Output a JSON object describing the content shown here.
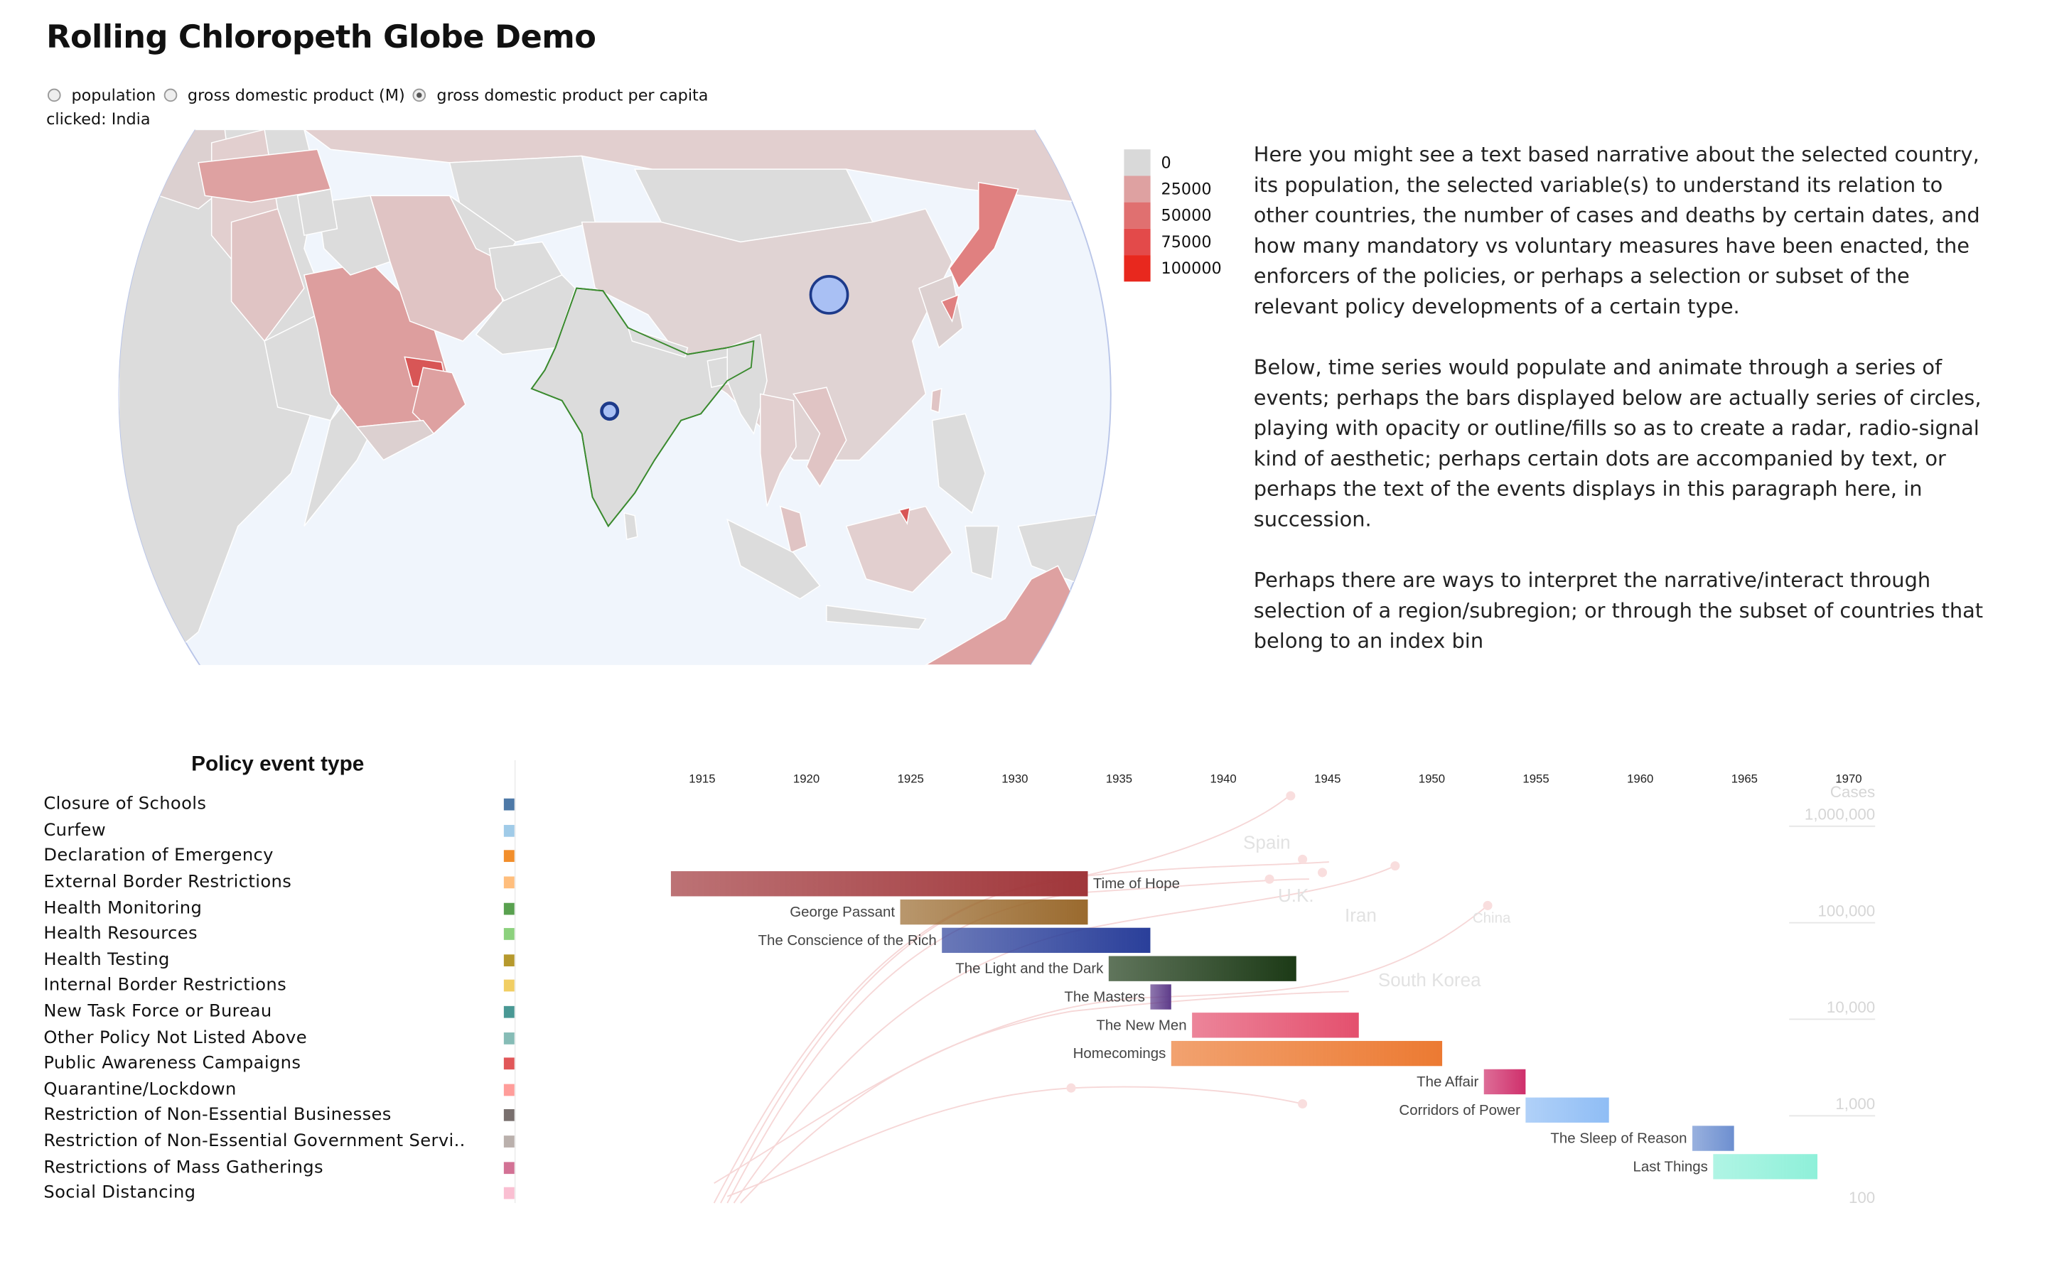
{
  "title": "Rolling Chloropeth Globe Demo",
  "radio_options": [
    {
      "label": "population",
      "selected": false
    },
    {
      "label": "gross domestic product (M)",
      "selected": false
    },
    {
      "label": "gross domestic product per capita",
      "selected": true
    }
  ],
  "clicked_label": "clicked: India",
  "map_legend": [
    {
      "label": "0",
      "color": "#d9d9d9"
    },
    {
      "label": "25000",
      "color": "#dea1a1"
    },
    {
      "label": "50000",
      "color": "#e07070"
    },
    {
      "label": "75000",
      "color": "#e34a4a"
    },
    {
      "label": "100000",
      "color": "#e8281e"
    }
  ],
  "narrative": [
    "Here you might see a text based narrative about the selected country, its population, the selected variable(s) to understand its relation to other countries, the number of cases and deaths by certain dates, and how many mandatory vs voluntary measures have been enacted, the enforcers of the policies, or perhaps a selection or subset of the relevant policy developments of a certain type.",
    "Below, time series would populate and animate through a series of events; perhaps the bars displayed below are actually series of circles, playing with opacity or outline/fills so as to create a radar, radio-signal kind of aesthetic; perhaps certain dots are accompanied by text, or perhaps the text of the events displays in this paragraph here, in succession.",
    "Perhaps there are ways to interpret the narrative/interact through selection of a region/subregion; or through the subset of countries that belong to an index bin"
  ],
  "policy_title": "Policy event type",
  "policy_types": [
    {
      "label": "Closure of Schools",
      "color": "#4e79a7"
    },
    {
      "label": "Curfew",
      "color": "#a0cbe8"
    },
    {
      "label": "Declaration of Emergency",
      "color": "#f28e2b"
    },
    {
      "label": "External Border Restrictions",
      "color": "#ffbe7d"
    },
    {
      "label": "Health Monitoring",
      "color": "#59a14f"
    },
    {
      "label": "Health Resources",
      "color": "#8cd17d"
    },
    {
      "label": "Health Testing",
      "color": "#b6992d"
    },
    {
      "label": "Internal Border Restrictions",
      "color": "#f1ce63"
    },
    {
      "label": "New Task Force or Bureau",
      "color": "#499894"
    },
    {
      "label": "Other Policy Not Listed Above",
      "color": "#86bcb6"
    },
    {
      "label": "Public Awareness Campaigns",
      "color": "#e15759"
    },
    {
      "label": "Quarantine/Lockdown",
      "color": "#ff9d9a"
    },
    {
      "label": "Restriction of Non-Essential Businesses",
      "color": "#79706e"
    },
    {
      "label": "Restriction of Non-Essential Government Servi..",
      "color": "#bab0ac"
    },
    {
      "label": "Restrictions of Mass Gatherings",
      "color": "#d37295"
    },
    {
      "label": "Social Distancing",
      "color": "#fabfd2"
    }
  ],
  "timeline": {
    "x_ticks": [
      "1915",
      "1920",
      "1925",
      "1930",
      "1935",
      "1940",
      "1945",
      "1950",
      "1955",
      "1960",
      "1965",
      "1970"
    ],
    "events": [
      {
        "label": "Time of Hope",
        "start": 1913.5,
        "end": 1933.5,
        "color": "#a0363a",
        "label_side": "right"
      },
      {
        "label": "George Passant",
        "start": 1924.5,
        "end": 1933.5,
        "color": "#9a6a2e",
        "label_side": "left"
      },
      {
        "label": "The Conscience of the Rich",
        "start": 1926.5,
        "end": 1936.5,
        "color": "#2a3f9a",
        "label_side": "left"
      },
      {
        "label": "The Light and the Dark",
        "start": 1934.5,
        "end": 1943.5,
        "color": "#1c3a16",
        "label_side": "left"
      },
      {
        "label": "The Masters",
        "start": 1936.5,
        "end": 1937.5,
        "color": "#5e3c8a",
        "label_side": "left"
      },
      {
        "label": "The New Men",
        "start": 1938.5,
        "end": 1946.5,
        "color": "#e4506e",
        "label_side": "left"
      },
      {
        "label": "Homecomings",
        "start": 1937.5,
        "end": 1950.5,
        "color": "#ec7a32",
        "label_side": "left"
      },
      {
        "label": "The Affair",
        "start": 1952.5,
        "end": 1954.5,
        "color": "#cf2f6b",
        "label_side": "left"
      },
      {
        "label": "Corridors of Power",
        "start": 1954.5,
        "end": 1958.5,
        "color": "#8fbdf5",
        "label_side": "left"
      },
      {
        "label": "The Sleep of Reason",
        "start": 1962.5,
        "end": 1964.5,
        "color": "#6d8fd0",
        "label_side": "left"
      },
      {
        "label": "Last Things",
        "start": 1963.5,
        "end": 1968.5,
        "color": "#8ef0d9",
        "label_side": "left"
      }
    ]
  },
  "background_chart": {
    "title": "Cases",
    "y_ticks": [
      "1,000,000",
      "100,000",
      "10,000",
      "1,000",
      "100"
    ],
    "country_labels": [
      "Spain",
      "U.K.",
      "Iran",
      "China",
      "South Korea"
    ]
  }
}
